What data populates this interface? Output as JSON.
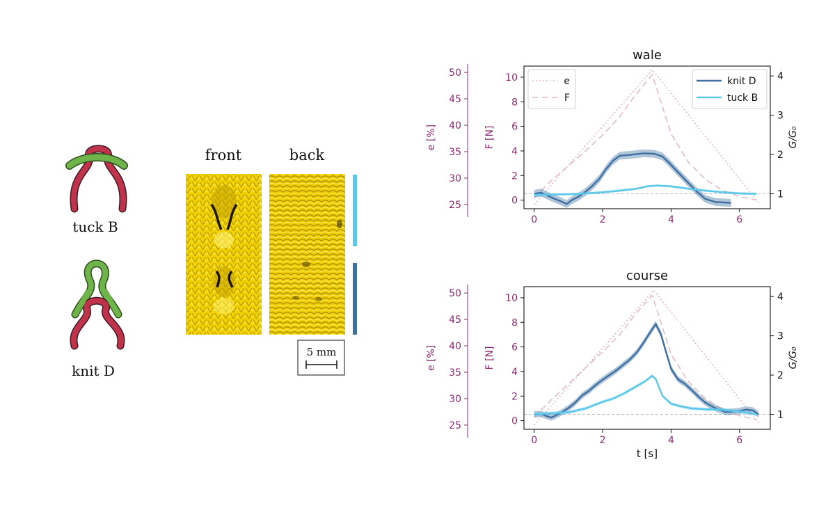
{
  "left_panel": {
    "labels": {
      "tuck": "tuck B",
      "knit": "knit D"
    },
    "photo_labels": {
      "front": "front",
      "back": "back"
    },
    "scalebar": "5 mm",
    "colors": {
      "loop_red": "#c0334a",
      "loop_green": "#6fb44a",
      "fabric": "#f2d300",
      "bar_tuck": "#5bc8ea",
      "bar_knit": "#3d6fa1"
    }
  },
  "chart_data": [
    {
      "type": "line",
      "title": "wale",
      "xlabel": "",
      "xlim": [
        -0.3,
        6.9
      ],
      "xticks": [
        0,
        2,
        4,
        6
      ],
      "y_force": {
        "label": "F [N]",
        "lim": [
          -0.7,
          10.9
        ],
        "ticks": [
          0,
          2,
          4,
          6,
          8,
          10
        ]
      },
      "y_strain": {
        "label": "e [%]",
        "lim": [
          24.2,
          51.2
        ],
        "ticks": [
          25,
          30,
          35,
          40,
          45,
          50
        ]
      },
      "y_ratio": {
        "label": "G/G₀",
        "lim": [
          0.62,
          4.25
        ],
        "ticks": [
          1,
          2,
          3,
          4
        ]
      },
      "legend_left": [
        "e",
        "F"
      ],
      "legend_right": [
        "knit D",
        "tuck B"
      ],
      "grid": false,
      "series": [
        {
          "name": "e",
          "axis": "strain",
          "style": "dotted",
          "color": "#dba3bb",
          "x": [
            0,
            3.45,
            6.6
          ],
          "y": [
            25,
            50.5,
            25
          ]
        },
        {
          "name": "F",
          "axis": "force",
          "style": "dashed",
          "color": "#e0bcc7",
          "x": [
            0,
            0.5,
            1.0,
            1.5,
            2.0,
            2.5,
            3.0,
            3.45,
            3.7,
            4.0,
            4.5,
            5.0,
            5.5,
            6.0,
            6.5
          ],
          "y": [
            0.2,
            1.6,
            2.8,
            4.0,
            5.3,
            6.8,
            8.7,
            10.2,
            8.0,
            5.4,
            3.1,
            1.7,
            0.8,
            0.3,
            0.0
          ]
        },
        {
          "name": "knit D",
          "axis": "ratio",
          "style": "solid",
          "color": "#3d6fa1",
          "band": 0.1,
          "x": [
            0,
            0.2,
            0.4,
            0.6,
            0.8,
            0.95,
            1.1,
            1.3,
            1.5,
            1.7,
            1.9,
            2.1,
            2.3,
            2.5,
            2.8,
            3.2,
            3.5,
            3.75,
            3.95,
            4.2,
            4.5,
            4.75,
            5.0,
            5.3,
            5.75
          ],
          "y": [
            1.0,
            1.03,
            0.95,
            0.87,
            0.8,
            0.74,
            0.84,
            0.93,
            1.05,
            1.2,
            1.38,
            1.63,
            1.84,
            1.97,
            1.99,
            2.03,
            2.02,
            1.95,
            1.78,
            1.55,
            1.28,
            1.06,
            0.87,
            0.79,
            0.77
          ]
        },
        {
          "name": "tuck B",
          "axis": "ratio",
          "style": "solid",
          "color": "#5bc8ea",
          "band": 0.03,
          "x": [
            0,
            0.5,
            1.0,
            1.5,
            2.0,
            2.5,
            3.0,
            3.3,
            3.6,
            4.0,
            4.5,
            5.0,
            5.5,
            6.0,
            6.5
          ],
          "y": [
            0.97,
            0.98,
            0.99,
            1.01,
            1.04,
            1.08,
            1.13,
            1.19,
            1.21,
            1.19,
            1.13,
            1.08,
            1.04,
            1.01,
            1.0
          ]
        }
      ]
    },
    {
      "type": "line",
      "title": "course",
      "xlabel": "t [s]",
      "xlim": [
        -0.3,
        6.9
      ],
      "xticks": [
        0,
        2,
        4,
        6
      ],
      "y_force": {
        "label": "F [N]",
        "lim": [
          -0.7,
          10.9
        ],
        "ticks": [
          0,
          2,
          4,
          6,
          8,
          10
        ]
      },
      "y_strain": {
        "label": "e [%]",
        "lim": [
          24.2,
          51.2
        ],
        "ticks": [
          25,
          30,
          35,
          40,
          45,
          50
        ]
      },
      "y_ratio": {
        "label": "G/G₀",
        "lim": [
          0.62,
          4.25
        ],
        "ticks": [
          1,
          2,
          3,
          4
        ]
      },
      "grid": false,
      "series": [
        {
          "name": "e",
          "axis": "strain",
          "style": "dotted",
          "color": "#dba3bb",
          "x": [
            0,
            3.5,
            6.6
          ],
          "y": [
            25,
            50.5,
            25
          ]
        },
        {
          "name": "F",
          "axis": "force",
          "style": "dashed",
          "color": "#e0bcc7",
          "x": [
            0,
            0.5,
            1.0,
            1.5,
            2.0,
            2.5,
            3.0,
            3.45,
            3.7,
            4.0,
            4.5,
            5.0,
            5.5,
            6.0,
            6.5
          ],
          "y": [
            0.3,
            1.7,
            3.0,
            4.3,
            5.6,
            7.0,
            8.8,
            10.2,
            8.0,
            5.4,
            3.2,
            1.8,
            0.9,
            0.4,
            0.1
          ]
        },
        {
          "name": "knit D",
          "axis": "ratio",
          "style": "solid",
          "color": "#3d6fa1",
          "band": 0.08,
          "x": [
            0,
            0.2,
            0.35,
            0.5,
            0.65,
            0.8,
            1.0,
            1.2,
            1.4,
            1.6,
            1.8,
            2.0,
            2.2,
            2.4,
            2.6,
            2.8,
            3.0,
            3.2,
            3.4,
            3.55,
            3.7,
            3.85,
            4.0,
            4.2,
            4.4,
            4.6,
            4.8,
            5.0,
            5.2,
            5.4,
            5.6,
            5.8,
            6.0,
            6.2,
            6.4,
            6.55
          ],
          "y": [
            1.0,
            1.01,
            0.96,
            0.92,
            0.98,
            1.05,
            1.16,
            1.3,
            1.48,
            1.6,
            1.75,
            1.88,
            2.0,
            2.12,
            2.26,
            2.4,
            2.58,
            2.83,
            3.1,
            3.3,
            3.05,
            2.6,
            2.16,
            1.89,
            1.78,
            1.62,
            1.45,
            1.3,
            1.2,
            1.12,
            1.06,
            1.07,
            1.09,
            1.12,
            1.1,
            1.0
          ]
        },
        {
          "name": "tuck B",
          "axis": "ratio",
          "style": "solid",
          "color": "#5bc8ea",
          "band": 0.04,
          "x": [
            0,
            0.5,
            1.0,
            1.5,
            2.0,
            2.3,
            2.6,
            2.9,
            3.2,
            3.45,
            3.55,
            3.75,
            4.0,
            4.3,
            4.6,
            5.0,
            5.5,
            6.0,
            6.5
          ],
          "y": [
            1.0,
            1.03,
            1.05,
            1.15,
            1.32,
            1.4,
            1.52,
            1.67,
            1.82,
            1.98,
            1.9,
            1.47,
            1.27,
            1.2,
            1.15,
            1.13,
            1.12,
            1.07,
            1.0
          ]
        }
      ]
    }
  ]
}
